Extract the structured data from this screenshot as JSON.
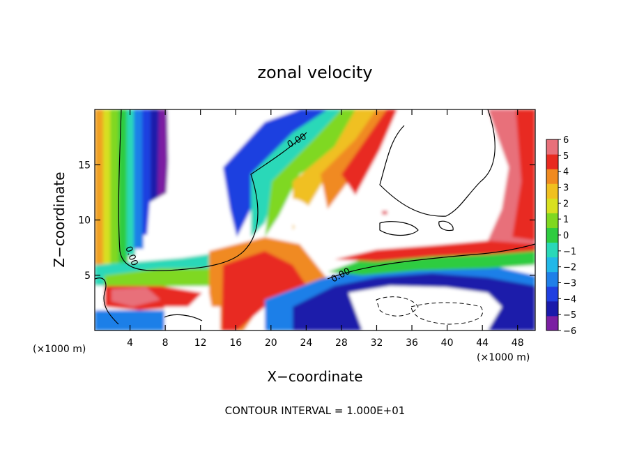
{
  "chart_data": {
    "type": "heatmap",
    "title": "zonal velocity",
    "xlabel": "X−coordinate",
    "ylabel": "Z−coordinate",
    "x_unit_left": "(×1000 m)",
    "x_unit_right": "(×1000 m)",
    "footer": "CONTOUR INTERVAL = 1.000E+01",
    "xlim": [
      0,
      50
    ],
    "ylim": [
      0,
      20
    ],
    "x_ticks": [
      4,
      8,
      12,
      16,
      20,
      24,
      28,
      32,
      36,
      40,
      44,
      48
    ],
    "y_ticks": [
      5,
      10,
      15
    ],
    "contour_labels": [
      "0.00",
      "0.00",
      "0.00"
    ],
    "colorbar": {
      "min": -6,
      "max": 6,
      "ticks": [
        6,
        5,
        4,
        3,
        2,
        1,
        0,
        -1,
        -2,
        -3,
        -4,
        -5,
        -6
      ],
      "colors": [
        "#7b1fa2",
        "#1a1aaa",
        "#1f3fe0",
        "#1f7fe8",
        "#22b8e8",
        "#2ad8b8",
        "#2ecc40",
        "#7fd820",
        "#d8e020",
        "#f0c020",
        "#f08a20",
        "#e82a20",
        "#e8707a"
      ]
    },
    "grid": false,
    "legend": "right"
  }
}
